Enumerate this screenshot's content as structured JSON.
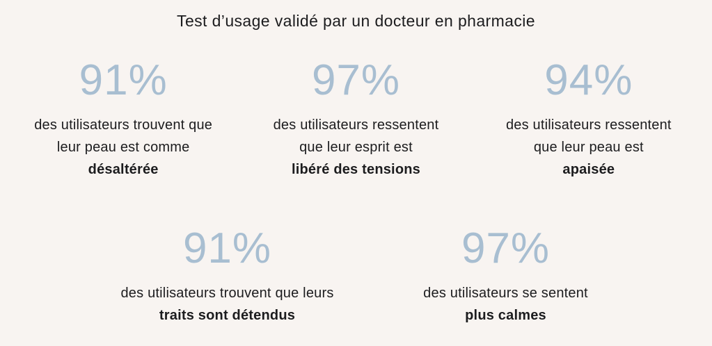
{
  "page": {
    "title": "Test d’usage validé par un docteur en pharmacie",
    "background_color": "#f8f4f1",
    "percent_color": "#a8bed1",
    "text_color": "#1c1c1e"
  },
  "stats": {
    "top_row": [
      {
        "value": "91%",
        "line1": "des utilisateurs trouvent que",
        "line2": "leur peau est comme",
        "highlight": "désaltérée"
      },
      {
        "value": "97%",
        "line1": "des utilisateurs ressentent",
        "line2": "que leur esprit est",
        "highlight": "libéré des tensions"
      },
      {
        "value": "94%",
        "line1": "des utilisateurs ressentent",
        "line2": "que leur peau est",
        "highlight": "apaisée"
      }
    ],
    "bottom_row": [
      {
        "value": "91%",
        "line1": "des utilisateurs trouvent que leurs",
        "highlight": "traits sont détendus"
      },
      {
        "value": "97%",
        "line1": "des utilisateurs se sentent",
        "highlight": "plus calmes"
      }
    ]
  }
}
